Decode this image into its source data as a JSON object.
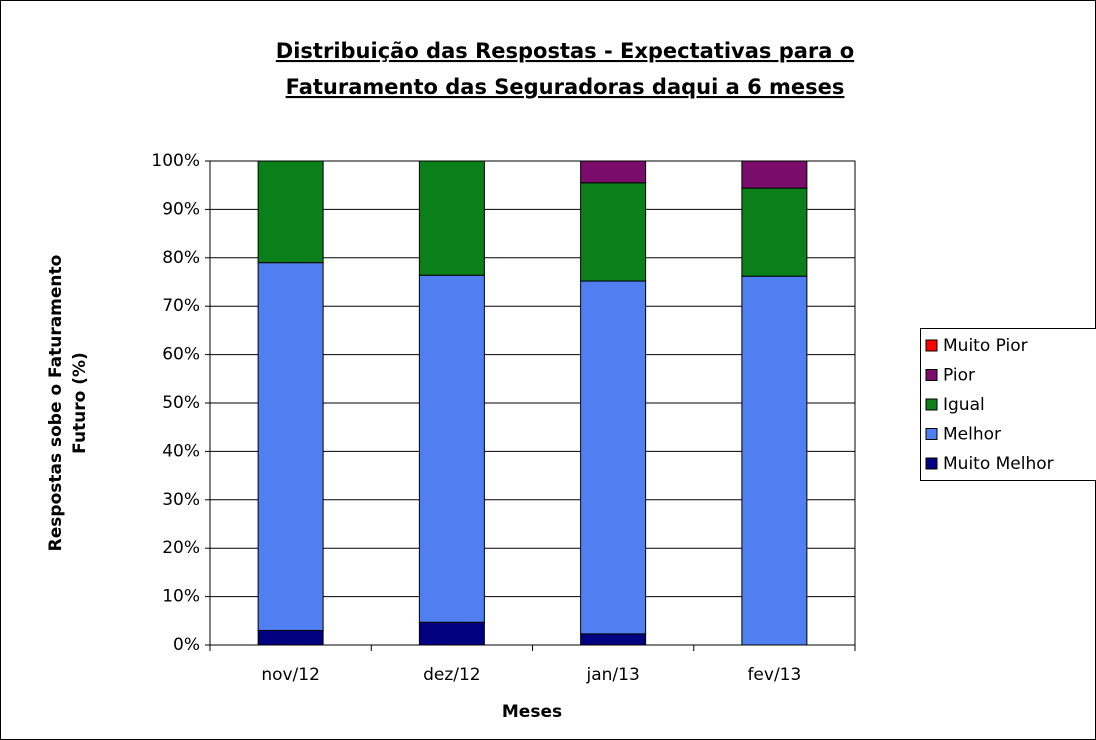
{
  "chart_data": {
    "type": "stacked_bar",
    "title": [
      "Distribuição das Respostas - Expectativas para o",
      "Faturamento das Seguradoras daqui a 6 meses"
    ],
    "xlabel": "Meses",
    "ylabel": [
      "Respostas sobe o Faturamento",
      "Futuro (%)"
    ],
    "categories": [
      "nov/12",
      "dez/12",
      "jan/13",
      "fev/13"
    ],
    "series": [
      {
        "name": "Muito Melhor",
        "color": "#000080",
        "values": [
          3,
          4.7,
          2.3,
          0
        ]
      },
      {
        "name": "Melhor",
        "color": "#4f7ff0",
        "values": [
          76,
          71.7,
          72.9,
          76.2
        ]
      },
      {
        "name": "Igual",
        "color": "#0a7f1a",
        "values": [
          21,
          23.6,
          20.3,
          18.2
        ]
      },
      {
        "name": "Pior",
        "color": "#7a0d6b",
        "values": [
          0,
          0,
          4.5,
          5.6
        ]
      },
      {
        "name": "Muito Pior",
        "color": "#ff0000",
        "values": [
          0,
          0,
          0,
          0
        ]
      }
    ],
    "ylim": [
      0,
      100
    ],
    "yticks": [
      {
        "value": 0,
        "label": "0%"
      },
      {
        "value": 10,
        "label": "10%"
      },
      {
        "value": 20,
        "label": "20%"
      },
      {
        "value": 30,
        "label": "30%"
      },
      {
        "value": 40,
        "label": "40%"
      },
      {
        "value": 50,
        "label": "50%"
      },
      {
        "value": 60,
        "label": "60%"
      },
      {
        "value": 70,
        "label": "70%"
      },
      {
        "value": 80,
        "label": "80%"
      },
      {
        "value": 90,
        "label": "90%"
      },
      {
        "value": 100,
        "label": "100%"
      }
    ],
    "grid": true,
    "legend": "right"
  }
}
